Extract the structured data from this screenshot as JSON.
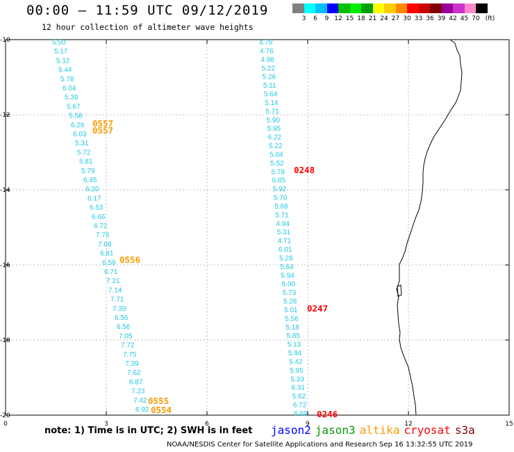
{
  "header": {
    "title": "00:00 – 11:59 UTC 09/12/2019",
    "subtitle": "12 hour collection of altimeter wave heights"
  },
  "colorbar": {
    "colors": [
      "#808080",
      "#00ffff",
      "#00bfff",
      "#0000ff",
      "#00bf00",
      "#00ee00",
      "#00a000",
      "#ffff00",
      "#ffcc00",
      "#ff8800",
      "#ff0000",
      "#cc0000",
      "#800000",
      "#990099",
      "#cc33cc",
      "#ff88cc",
      "#000000"
    ],
    "labels": [
      "3",
      "6",
      "9",
      "12",
      "15",
      "18",
      "21",
      "24",
      "27",
      "30",
      "33",
      "36",
      "39",
      "42",
      "45",
      "70",
      "(ft)"
    ]
  },
  "axes": {
    "x_ticks": [
      "0",
      "3",
      "6",
      "9",
      "12",
      "15"
    ],
    "y_ticks": [
      "-10",
      "-12",
      "-14",
      "-16",
      "-18",
      "-20"
    ]
  },
  "track_west": [
    "5.50",
    "5.17",
    "5.12",
    "5.44",
    "5.78",
    "6.04",
    "5.39",
    "5.67",
    "5.58",
    "6.26",
    "6.03",
    "5.31",
    "5.72",
    "5.81",
    "5.79",
    "6.45",
    "6.20",
    "6.17",
    "6.53",
    "6.66",
    "6.72",
    "7.76",
    "7.08",
    "6.81",
    "6.59",
    "6.71",
    "7.21",
    "7.14",
    "7.71",
    "7.39",
    "6.56",
    "6.56",
    "7.05",
    "7.72",
    "7.75",
    "7.39",
    "7.62",
    "6.87",
    "7.23",
    "7.42",
    "6.92"
  ],
  "track_east": [
    "4.76",
    "4.76",
    "4.98",
    "5.22",
    "5.26",
    "5.11",
    "5.64",
    "5.14",
    "5.71",
    "5.90",
    "5.95",
    "6.22",
    "5.22",
    "5.04",
    "5.52",
    "5.78",
    "6.85",
    "5.92",
    "5.70",
    "5.68",
    "5.71",
    "4.94",
    "5.31",
    "4.71",
    "6.01",
    "5.28",
    "5.64",
    "5.94",
    "6.00",
    "5.73",
    "5.28",
    "5.01",
    "5.56",
    "5.18",
    "5.85",
    "5.13",
    "5.94",
    "5.42",
    "5.95",
    "5.33",
    "6.31",
    "5.62",
    "6.72",
    "6.69"
  ],
  "pass_times": {
    "altika": [
      "0557",
      "0557",
      "0556",
      "0555",
      "0554"
    ],
    "cryosat": [
      "0248",
      "0247",
      "0246"
    ]
  },
  "legend": {
    "note": "note: 1) Time is in UTC; 2) SWH is in feet",
    "items": [
      {
        "label": "jason2",
        "color": "#0000ff"
      },
      {
        "label": "jason3",
        "color": "#009900"
      },
      {
        "label": "altika",
        "color": "#ff9900"
      },
      {
        "label": "cryosat",
        "color": "#ff0000"
      },
      {
        "label": "s3a",
        "color": "#800000"
      }
    ]
  },
  "footer": "NOAA/NESDIS Center for Satellite Applications and Research    Sep 16 13:32:55 UTC 2019",
  "colors": {
    "track_text": "#1fc8e0",
    "altika_time": "#ff9900",
    "cryosat_time": "#ff0000",
    "grid": "#bbbbbb"
  }
}
